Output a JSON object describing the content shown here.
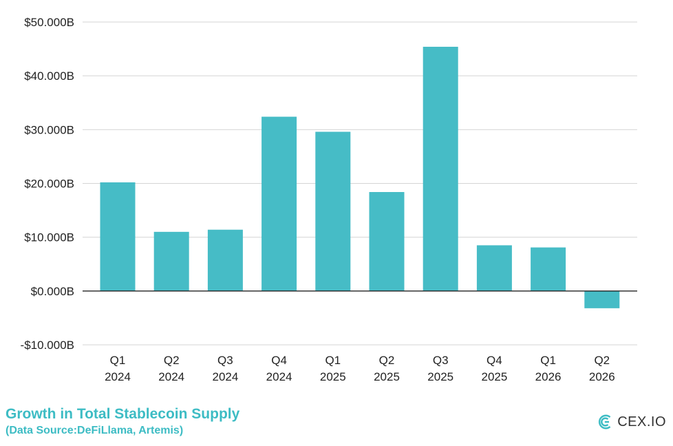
{
  "chart_data": {
    "type": "bar",
    "categories": [
      [
        "Q1",
        "2024"
      ],
      [
        "Q2",
        "2024"
      ],
      [
        "Q3",
        "2024"
      ],
      [
        "Q4",
        "2024"
      ],
      [
        "Q1",
        "2025"
      ],
      [
        "Q2",
        "2025"
      ],
      [
        "Q3",
        "2025"
      ],
      [
        "Q4",
        "2025"
      ],
      [
        "Q1",
        "2026"
      ],
      [
        "Q2",
        "2026"
      ]
    ],
    "values": [
      20.2,
      11.0,
      11.4,
      32.4,
      29.6,
      18.4,
      45.4,
      8.5,
      8.1,
      -3.2
    ],
    "ylim": [
      -10,
      50
    ],
    "yticks": [
      50,
      40,
      30,
      20,
      10,
      0,
      -10
    ],
    "ytick_labels": [
      "$50.000B",
      "$40.000B",
      "$30.000B",
      "$20.000B",
      "$10.000B",
      "$0.000B",
      "-$10.000B"
    ],
    "grid": true,
    "bar_color": "#46bcc6",
    "title": "",
    "xlabel": "",
    "ylabel": ""
  },
  "footer": {
    "title": "Growth in Total Stablecoin Supply",
    "subtitle": "(Data Source:DeFiLlama, Artemis)"
  },
  "logo": {
    "text": "CEX.IO",
    "icon": "cex-io-logo-icon",
    "color": "#3dbcc4"
  }
}
